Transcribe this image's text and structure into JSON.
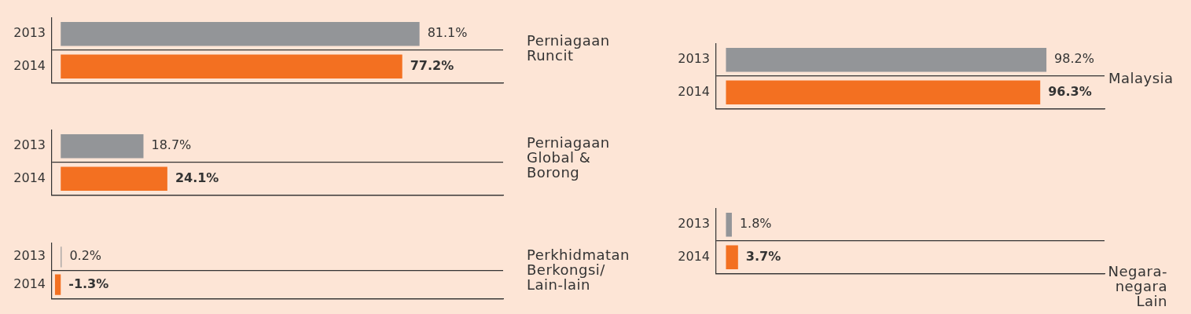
{
  "chart_data": [
    {
      "type": "bar",
      "annotations": [
        "Perniagaan Runcit"
      ],
      "orientation": "horizontal",
      "categories": [
        "2013",
        "2014"
      ],
      "values": [
        81.1,
        77.2
      ],
      "colors": [
        "#939598",
        "#f37021"
      ],
      "value_labels": [
        "81.1%",
        "77.2%"
      ],
      "xlim": [
        -2,
        100
      ],
      "tick_labels": "y"
    },
    {
      "type": "bar",
      "annotations": [
        "Perniagaan Global & Borong"
      ],
      "orientation": "horizontal",
      "categories": [
        "2013",
        "2014"
      ],
      "values": [
        18.7,
        24.1
      ],
      "colors": [
        "#939598",
        "#f37021"
      ],
      "value_labels": [
        "18.7%",
        "24.1%"
      ],
      "xlim": [
        -2,
        100
      ],
      "tick_labels": "y"
    },
    {
      "type": "bar",
      "annotations": [
        "Perkhidmatan Berkongsi/ Lain-lain"
      ],
      "orientation": "horizontal",
      "categories": [
        "2013",
        "2014"
      ],
      "values": [
        0.2,
        -1.3
      ],
      "colors": [
        "#939598",
        "#f37021"
      ],
      "value_labels": [
        "0.2%",
        "-1.3%"
      ],
      "xlim": [
        -2,
        100
      ],
      "tick_labels": "y"
    },
    {
      "type": "bar",
      "annotations": [
        "Malaysia"
      ],
      "orientation": "horizontal",
      "categories": [
        "2013",
        "2014"
      ],
      "values": [
        98.2,
        96.3
      ],
      "colors": [
        "#939598",
        "#f37021"
      ],
      "value_labels": [
        "98.2%",
        "96.3%"
      ],
      "xlim": [
        -3,
        116
      ],
      "tick_labels": "y"
    },
    {
      "type": "bar",
      "annotations": [
        "Negara-negara Lain"
      ],
      "orientation": "horizontal",
      "categories": [
        "2013",
        "2014"
      ],
      "values": [
        1.8,
        3.7
      ],
      "colors": [
        "#939598",
        "#f37021"
      ],
      "value_labels": [
        "1.8%",
        "3.7%"
      ],
      "xlim": [
        -3,
        116
      ],
      "tick_labels": "y"
    }
  ]
}
